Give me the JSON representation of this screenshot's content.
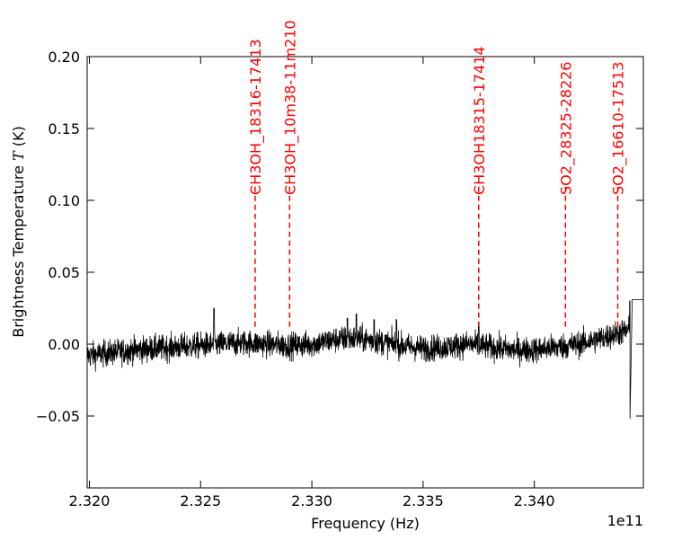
{
  "chart_data": {
    "type": "line",
    "title": "",
    "xlabel": "Frequency (Hz)",
    "ylabel": "Brightness Temperature",
    "ylabel_symbol": "T",
    "ylabel_unit": "(K)",
    "x_offset_label": "1e11",
    "xlim": [
      2.3199,
      2.3449
    ],
    "ylim": [
      -0.1,
      0.2
    ],
    "x_ticks": [
      2.32,
      2.325,
      2.33,
      2.335,
      2.34
    ],
    "x_tick_labels": [
      "2.320",
      "2.325",
      "2.330",
      "2.335",
      "2.340"
    ],
    "y_ticks": [
      0.2,
      0.15,
      0.1,
      0.05,
      0.0,
      -0.05
    ],
    "y_tick_labels": [
      "0.20",
      "0.15",
      "0.10",
      "0.05",
      "0.00",
      "−0.05"
    ],
    "grid": false,
    "spectrum": {
      "color": "#000000",
      "x_start": 2.3199,
      "x_end": 2.3443,
      "baseline_points": [
        [
          2.3199,
          -0.008
        ],
        [
          2.321,
          -0.006
        ],
        [
          2.322,
          -0.004
        ],
        [
          2.323,
          -0.003
        ],
        [
          2.324,
          -0.002
        ],
        [
          2.325,
          -0.001
        ],
        [
          2.326,
          0.0
        ],
        [
          2.327,
          0.001
        ],
        [
          2.328,
          0.0
        ],
        [
          2.329,
          -0.001
        ],
        [
          2.33,
          0.0
        ],
        [
          2.331,
          0.003
        ],
        [
          2.332,
          0.004
        ],
        [
          2.333,
          0.002
        ],
        [
          2.334,
          -0.001
        ],
        [
          2.335,
          -0.003
        ],
        [
          2.336,
          -0.002
        ],
        [
          2.337,
          0.0
        ],
        [
          2.338,
          -0.002
        ],
        [
          2.339,
          -0.004
        ],
        [
          2.34,
          -0.004
        ],
        [
          2.341,
          -0.002
        ],
        [
          2.342,
          0.0
        ],
        [
          2.343,
          0.004
        ],
        [
          2.3443,
          0.01
        ]
      ],
      "noise_amplitude": 0.009,
      "spikes": [
        [
          2.3256,
          0.025
        ],
        [
          2.3316,
          0.018
        ],
        [
          2.332,
          0.021
        ],
        [
          2.3328,
          0.017
        ],
        [
          2.3338,
          0.017
        ],
        [
          2.3375,
          0.015
        ],
        [
          2.3443,
          0.03
        ]
      ],
      "tail_points": [
        [
          2.3443,
          -0.052
        ],
        [
          2.3444,
          0.031
        ],
        [
          2.3449,
          0.031
        ]
      ]
    },
    "line_markers": [
      {
        "x": 2.32745,
        "label": "CH3OH_18316-17413"
      },
      {
        "x": 2.329,
        "label": "CH3OH_10m38-11m210"
      },
      {
        "x": 2.3375,
        "label": "CH3OH18315-17414"
      },
      {
        "x": 2.3414,
        "label": "SO2_28325-28226"
      },
      {
        "x": 2.34375,
        "label": "SO2_16610-17513"
      }
    ],
    "marker_color": "#ff0000",
    "marker_ymin": 0.012,
    "marker_ymax": 0.11
  }
}
